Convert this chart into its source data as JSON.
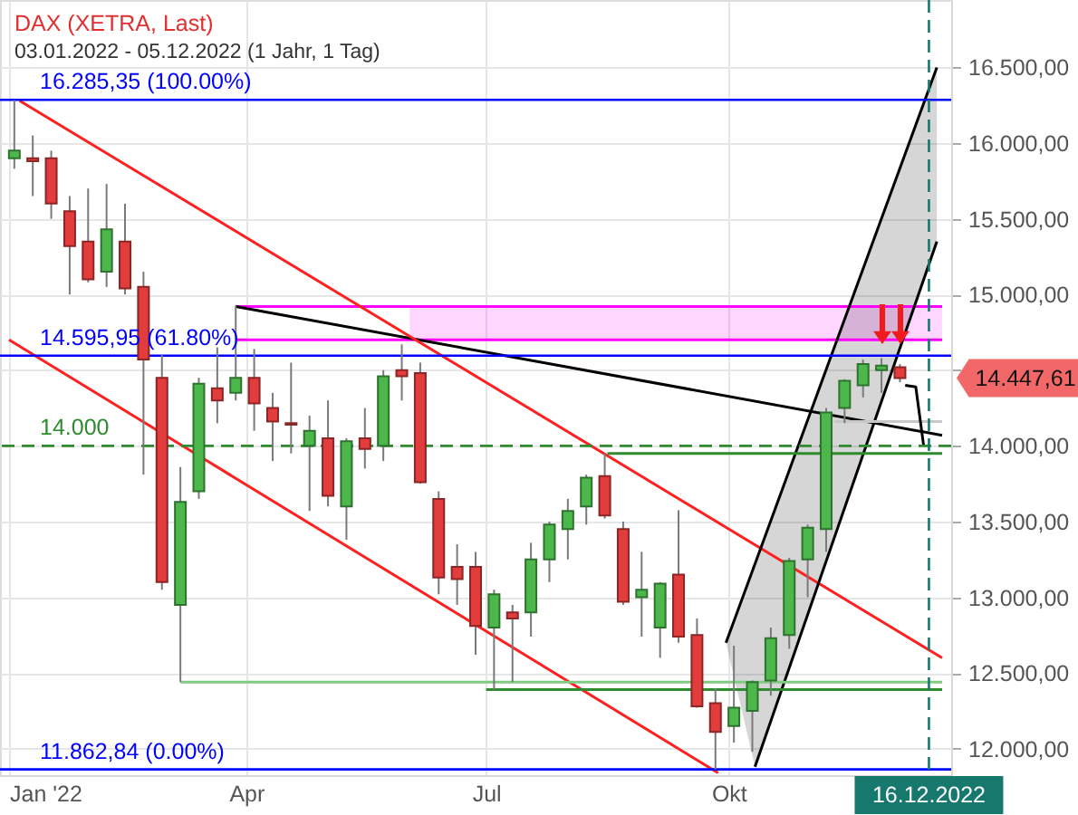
{
  "chart_data": {
    "type": "candlestick",
    "title": "DAX (XETRA, Last)",
    "subtitle": "03.01.2022 - 05.12.2022 (1 Jahr, 1 Tag)",
    "xlim": [
      "2022-01-01",
      "2022-12-21"
    ],
    "ylim": [
      11825,
      16945
    ],
    "xticks": [
      {
        "value": "2022-01-01",
        "label": "Jan '22"
      },
      {
        "value": "2022-04-01",
        "label": "Apr"
      },
      {
        "value": "2022-07-01",
        "label": "Jul"
      },
      {
        "value": "2022-10-01",
        "label": "Okt"
      }
    ],
    "yticks": [
      {
        "value": 12000,
        "label": "12.000,00"
      },
      {
        "value": 12500,
        "label": "12.500,00"
      },
      {
        "value": 13000,
        "label": "13.000,00"
      },
      {
        "value": 13500,
        "label": "13.500,00"
      },
      {
        "value": 14000,
        "label": "14.000,00"
      },
      {
        "value": 14500,
        "label": null
      },
      {
        "value": 15000,
        "label": "15.000,00"
      },
      {
        "value": 15500,
        "label": "15.500,00"
      },
      {
        "value": 16000,
        "label": "16.000,00"
      },
      {
        "value": 16500,
        "label": "16.500,00"
      }
    ],
    "grid": true,
    "series": [
      {
        "x": [
          "2022-01-03",
          "2022-01-10",
          "2022-01-17",
          "2022-01-24",
          "2022-01-31",
          "2022-02-07",
          "2022-02-14",
          "2022-02-21",
          "2022-02-28",
          "2022-03-07",
          "2022-03-14",
          "2022-03-21",
          "2022-03-28",
          "2022-04-04",
          "2022-04-11",
          "2022-04-18",
          "2022-04-25",
          "2022-05-02",
          "2022-05-09",
          "2022-05-16",
          "2022-05-23",
          "2022-05-30",
          "2022-06-06",
          "2022-06-13",
          "2022-06-20",
          "2022-06-27",
          "2022-07-04",
          "2022-07-11",
          "2022-07-18",
          "2022-07-25",
          "2022-08-01",
          "2022-08-08",
          "2022-08-15",
          "2022-08-22",
          "2022-08-29",
          "2022-09-05",
          "2022-09-12",
          "2022-09-19",
          "2022-09-26",
          "2022-10-03",
          "2022-10-10",
          "2022-10-17",
          "2022-10-24",
          "2022-10-31",
          "2022-11-07",
          "2022-11-14",
          "2022-11-21",
          "2022-11-28",
          "2022-12-05"
        ],
        "ohlc": [
          [
            15900,
            16285,
            15830,
            15950
          ],
          [
            15900,
            16050,
            15650,
            15880
          ],
          [
            15900,
            15950,
            15500,
            15600
          ],
          [
            15550,
            15650,
            15000,
            15320
          ],
          [
            15350,
            15700,
            15080,
            15100
          ],
          [
            15150,
            15730,
            15050,
            15430
          ],
          [
            15350,
            15600,
            15000,
            15040
          ],
          [
            15050,
            15150,
            13810,
            14570
          ],
          [
            14450,
            14600,
            13050,
            13100
          ],
          [
            12950,
            13860,
            12440,
            13630
          ],
          [
            13700,
            14450,
            13650,
            14410
          ],
          [
            14380,
            14650,
            14150,
            14300
          ],
          [
            14350,
            14925,
            14300,
            14450
          ],
          [
            14450,
            14640,
            14100,
            14280
          ],
          [
            14250,
            14350,
            13900,
            14160
          ],
          [
            14150,
            14550,
            13950,
            14140
          ],
          [
            14000,
            14200,
            13570,
            14100
          ],
          [
            14050,
            14300,
            13600,
            13670
          ],
          [
            13600,
            14050,
            13380,
            14030
          ],
          [
            14050,
            14250,
            13850,
            13980
          ],
          [
            14000,
            14500,
            13900,
            14460
          ],
          [
            14500,
            14670,
            14300,
            14460
          ],
          [
            14480,
            14550,
            13750,
            13760
          ],
          [
            13650,
            13700,
            13020,
            13130
          ],
          [
            13200,
            13350,
            12950,
            13120
          ],
          [
            13200,
            13300,
            12620,
            12810
          ],
          [
            12800,
            13050,
            12390,
            13020
          ],
          [
            12900,
            12950,
            12440,
            12860
          ],
          [
            12900,
            13360,
            12740,
            13250
          ],
          [
            13250,
            13500,
            13100,
            13480
          ],
          [
            13450,
            13650,
            13250,
            13570
          ],
          [
            13600,
            13810,
            13480,
            13790
          ],
          [
            13800,
            13950,
            13520,
            13540
          ],
          [
            13450,
            13500,
            12950,
            12970
          ],
          [
            13000,
            13300,
            12740,
            13050
          ],
          [
            12800,
            13100,
            12600,
            13090
          ],
          [
            13150,
            13575,
            12700,
            12740
          ],
          [
            12750,
            12860,
            12270,
            12280
          ],
          [
            12300,
            12400,
            11863,
            12110
          ],
          [
            12150,
            12680,
            12040,
            12270
          ],
          [
            12250,
            12450,
            11980,
            12440
          ],
          [
            12450,
            12800,
            12350,
            12730
          ],
          [
            12750,
            13260,
            12660,
            13240
          ],
          [
            13250,
            13480,
            13000,
            13460
          ],
          [
            13450,
            14250,
            13300,
            14220
          ],
          [
            14250,
            14440,
            14150,
            14430
          ],
          [
            14400,
            14570,
            14320,
            14540
          ],
          [
            14500,
            14580,
            14350,
            14530
          ],
          [
            14520,
            14540,
            14420,
            14447.61
          ]
        ],
        "colors": [
          "#4cb84c",
          "#e23c3c",
          "#e23c3c",
          "#e23c3c",
          "#e23c3c",
          "#4cb84c",
          "#e23c3c",
          "#e23c3c",
          "#e23c3c",
          "#4cb84c",
          "#4cb84c",
          "#e23c3c",
          "#4cb84c",
          "#e23c3c",
          "#e23c3c",
          "#e23c3c",
          "#4cb84c",
          "#e23c3c",
          "#4cb84c",
          "#e23c3c",
          "#4cb84c",
          "#e23c3c",
          "#e23c3c",
          "#e23c3c",
          "#e23c3c",
          "#e23c3c",
          "#4cb84c",
          "#e23c3c",
          "#4cb84c",
          "#4cb84c",
          "#4cb84c",
          "#4cb84c",
          "#e23c3c",
          "#e23c3c",
          "#4cb84c",
          "#4cb84c",
          "#e23c3c",
          "#e23c3c",
          "#e23c3c",
          "#4cb84c",
          "#4cb84c",
          "#4cb84c",
          "#4cb84c",
          "#4cb84c",
          "#4cb84c",
          "#4cb84c",
          "#4cb84c",
          "#4cb84c",
          "#e23c3c"
        ]
      },
      {
        "type": "line",
        "color": "#ff00ff",
        "x": [
          "2022-03-28",
          "2022-06-02",
          "2022-12-21"
        ],
        "values": [
          14700,
          14700,
          14700
        ],
        "lower": [
          null,
          14700,
          14700
        ],
        "upper": [
          null,
          14920,
          14920
        ]
      },
      {
        "type": "line",
        "color": "#ff00ff",
        "x": [
          "2022-03-28",
          "2022-12-21"
        ],
        "values": [
          14920,
          14920
        ]
      },
      {
        "type": "line",
        "color": "#000000",
        "x": [
          "2022-03-28",
          "2022-12-21"
        ],
        "values": [
          14920,
          14070
        ]
      },
      {
        "type": "line",
        "color": "#ff2020",
        "x": [
          "2022-01-05",
          "2022-12-21"
        ],
        "values": [
          16280,
          12600
        ]
      },
      {
        "type": "line",
        "color": "#ff2020",
        "x": [
          "2022-01-01",
          "2022-09-27"
        ],
        "values": [
          14700,
          11840
        ]
      },
      {
        "type": "line",
        "color": "#000000",
        "x": [
          "2022-09-30",
          "2022-10-11",
          "2022-12-19"
        ],
        "values": [
          12700,
          13220,
          16500
        ],
        "lower": [
          12700,
          11880,
          15350
        ],
        "upper": [
          12700,
          13220,
          16500
        ]
      },
      {
        "type": "line",
        "color": "#000000",
        "x": [
          "2022-10-11",
          "2022-12-19"
        ],
        "values": [
          11880,
          15350
        ]
      },
      {
        "type": "line",
        "color": "#2e8b2e",
        "x": [
          "2022-08-16",
          "2022-12-21"
        ],
        "values": [
          13950,
          13950
        ]
      },
      {
        "type": "line",
        "color": "#80cc80",
        "x": [
          "2022-03-07",
          "2022-12-21"
        ],
        "values": [
          12440,
          12440
        ]
      },
      {
        "type": "line",
        "color": "#2e8b2e",
        "x": [
          "2022-07-01",
          "2022-12-21"
        ],
        "values": [
          12390,
          12390
        ]
      },
      {
        "type": "line",
        "color": "#c8c8c8",
        "x": [
          "2022-11-10",
          "2022-12-21"
        ],
        "values": [
          14160,
          14160
        ]
      },
      {
        "type": "line",
        "color": "#000000",
        "x": [
          "2022-12-07",
          "2022-12-11",
          "2022-12-14"
        ],
        "values": [
          14400,
          14390,
          14000
        ]
      }
    ],
    "ref_lines": [
      {
        "axis": "y",
        "value": 16285.35,
        "label": "16.285,35 (100.00%)",
        "color": "#0000ff"
      },
      {
        "axis": "y",
        "value": 14595.95,
        "label": "14.595,95 (61.80%)",
        "color": "#0000ff"
      },
      {
        "axis": "y",
        "value": 11862.84,
        "label": "11.862,84 (0.00%)",
        "color": "#0000ff"
      },
      {
        "axis": "y",
        "value": 14000,
        "label": "14.000",
        "color": "#2e8b2e",
        "line_style": "dashed"
      },
      {
        "axis": "x",
        "value": "2022-12-16",
        "label": "16.12.2022",
        "color": "#17786e",
        "line_style": "dashed"
      }
    ],
    "annotations": [
      "14.447,61"
    ]
  }
}
